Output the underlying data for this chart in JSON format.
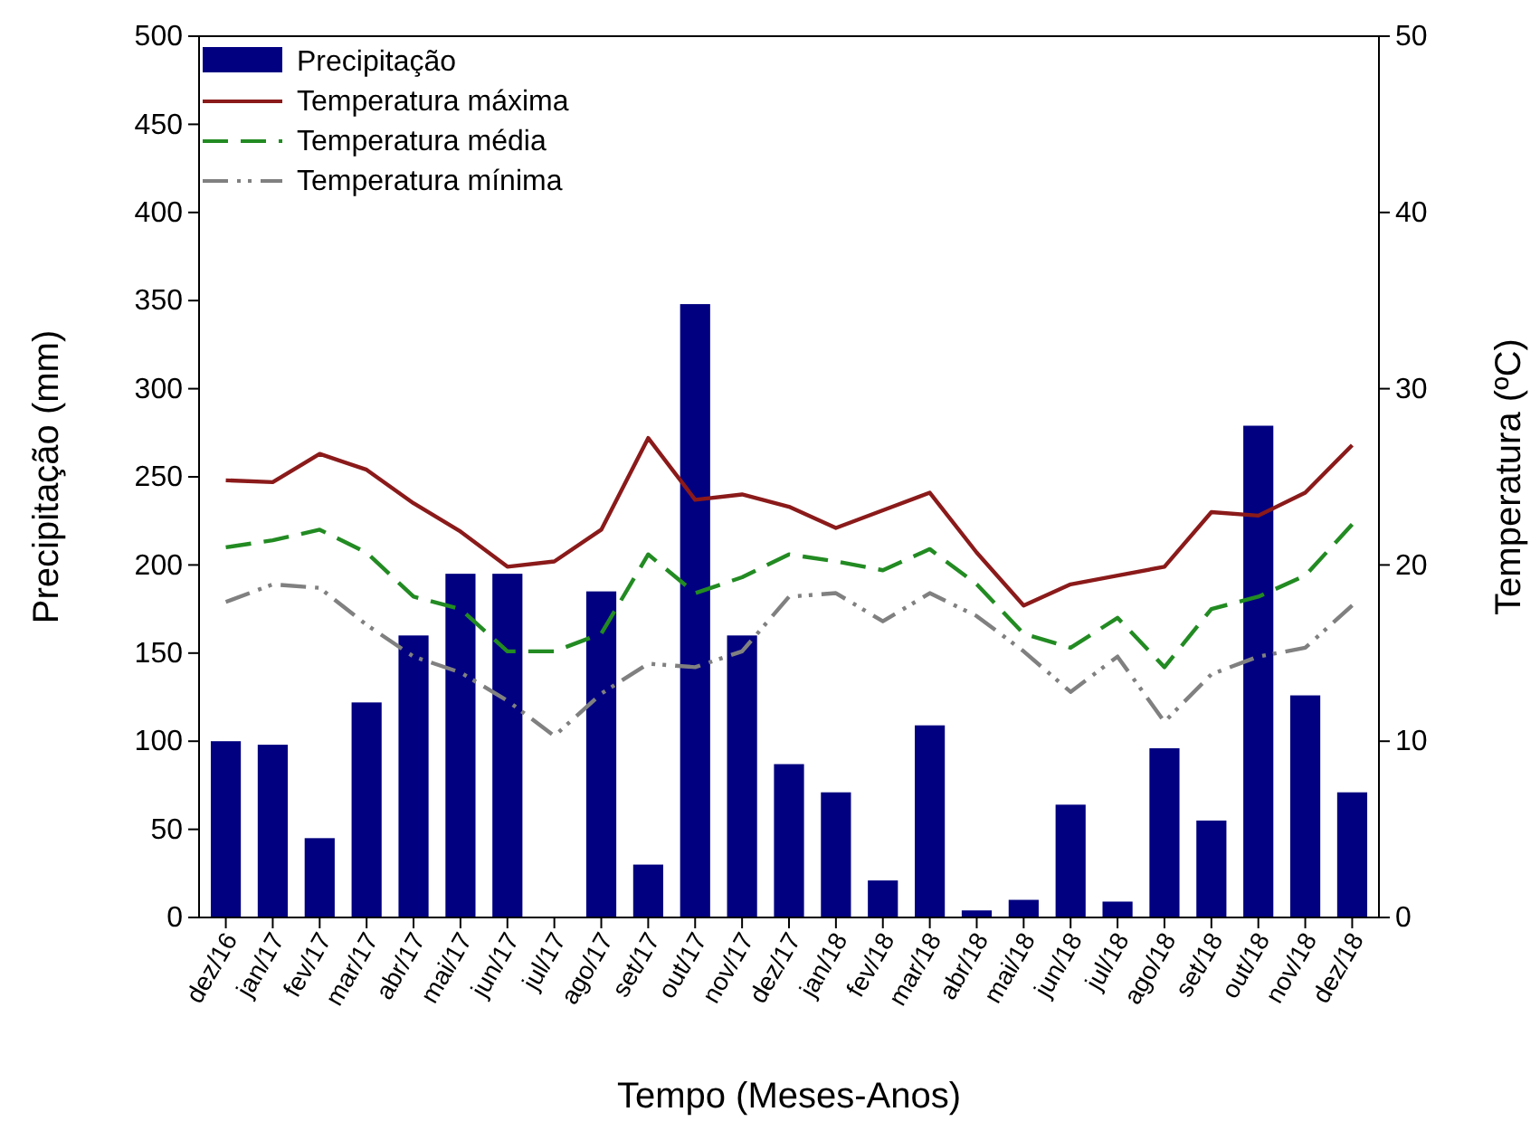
{
  "chart_data": {
    "type": "bar",
    "xlabel": "Tempo (Meses-Anos)",
    "ylabel": "Precipitação (mm)",
    "y2label": "Temperatura (ºC)",
    "categories": [
      "dez/16",
      "jan/17",
      "fev/17",
      "mar/17",
      "abr/17",
      "mai/17",
      "jun/17",
      "jul/17",
      "ago/17",
      "set/17",
      "out/17",
      "nov/17",
      "dez/17",
      "jan/18",
      "fev/18",
      "mar/18",
      "abr/18",
      "mai/18",
      "jun/18",
      "jul/18",
      "ago/18",
      "set/18",
      "out/18",
      "nov/18",
      "dez/18"
    ],
    "ylim": [
      0,
      500
    ],
    "yticks": [
      0,
      50,
      100,
      150,
      200,
      250,
      300,
      350,
      400,
      450,
      500
    ],
    "y2lim": [
      0,
      50
    ],
    "y2ticks": [
      0,
      10,
      20,
      30,
      40,
      50
    ],
    "legend": "top left",
    "grid": false,
    "series": [
      {
        "name": "Precipitação",
        "color": "#000080",
        "values": [
          100,
          98,
          45,
          122,
          160,
          195,
          195,
          0,
          185,
          30,
          348,
          160,
          87,
          71,
          21,
          109,
          4,
          10,
          64,
          9,
          96,
          55,
          279,
          126,
          71
        ]
      },
      {
        "name": "Temperatura máxima",
        "type": "line",
        "axis": "y2",
        "color": "#8b1a1a",
        "line_style": "solid",
        "values": [
          24.8,
          24.7,
          26.3,
          25.4,
          23.5,
          21.9,
          19.9,
          20.2,
          22.0,
          27.2,
          23.7,
          24.0,
          23.3,
          22.1,
          23.1,
          24.1,
          20.7,
          17.7,
          18.9,
          19.4,
          19.9,
          23.0,
          22.8,
          24.1,
          26.8
        ]
      },
      {
        "name": "Temperatura média",
        "type": "line",
        "axis": "y2",
        "color": "#228b22",
        "line_style": "dashed",
        "values": [
          21.0,
          21.4,
          22.0,
          20.7,
          18.2,
          17.5,
          15.1,
          15.1,
          16.1,
          20.6,
          18.4,
          19.3,
          20.6,
          20.2,
          19.7,
          20.9,
          18.9,
          16.1,
          15.3,
          17.0,
          14.2,
          17.5,
          18.2,
          19.4,
          22.3
        ]
      },
      {
        "name": "Temperatura mínima",
        "type": "line",
        "axis": "y2",
        "color": "#808080",
        "line_style": "dashdot",
        "values": [
          17.9,
          18.9,
          18.7,
          16.6,
          14.8,
          13.9,
          12.3,
          10.3,
          12.7,
          14.4,
          14.2,
          15.1,
          18.2,
          18.4,
          16.8,
          18.4,
          17.1,
          15.1,
          12.8,
          14.8,
          11.1,
          13.8,
          14.8,
          15.3,
          17.7
        ]
      }
    ]
  }
}
